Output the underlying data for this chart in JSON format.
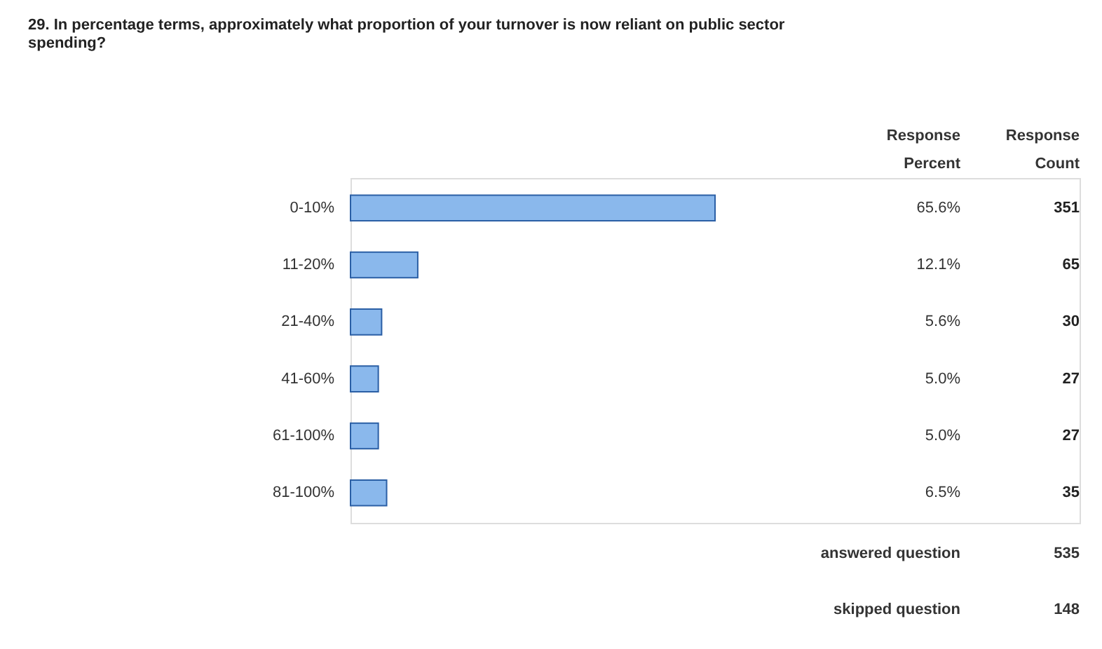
{
  "chart_data": {
    "type": "bar",
    "orientation": "horizontal",
    "title": "29. In percentage terms, approximately what proportion of your turnover is now reliant on public sector spending?",
    "categories": [
      "0-10%",
      "11-20%",
      "21-40%",
      "41-60%",
      "61-100%",
      "81-100%"
    ],
    "values": [
      65.6,
      12.1,
      5.6,
      5.0,
      5.0,
      6.5
    ],
    "value_labels": [
      "65.6%",
      "12.1%",
      "5.6%",
      "5.0%",
      "5.0%",
      "6.5%"
    ],
    "color": "#8ab8ec",
    "annotations": [
      "Response Percent",
      "Response Count",
      "351",
      "65",
      "30",
      "27",
      "27",
      "35",
      "answered question",
      "535",
      "skipped question",
      "148"
    ],
    "grid": false
  }
}
